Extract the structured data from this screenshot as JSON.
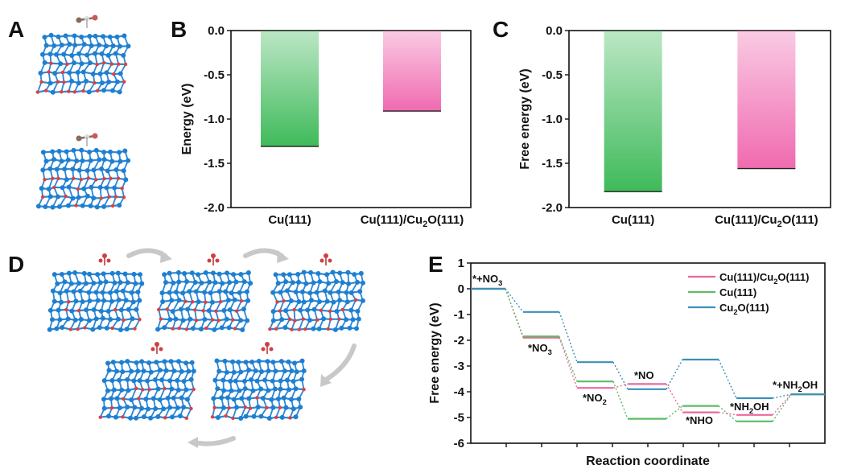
{
  "panels": {
    "A": "A",
    "B": "B",
    "C": "C",
    "D": "D",
    "E": "E"
  },
  "colors": {
    "green": "#3fba5a",
    "pink": "#f06ab0",
    "line_pink": "#e8699e",
    "line_green": "#5dbb63",
    "line_blue": "#3d8fb7",
    "atom_blue": "#1f7fcf",
    "atom_red": "#e04040"
  },
  "structures": {
    "icon_names": [
      "crystal-slab-icon",
      "adsorbate-molecule-icon",
      "cycle-arrow-icon"
    ]
  },
  "chart_data": [
    {
      "id": "B",
      "type": "bar",
      "categories": [
        "Cu(111)",
        "Cu(111)/Cu2O(111)"
      ],
      "values": [
        -1.31,
        -0.91
      ],
      "ylabel": "Energy (eV)",
      "xlabel": "",
      "ylim": [
        -2.0,
        0.0
      ],
      "yticks": [
        "0.0",
        "-0.5",
        "-1.0",
        "-1.5",
        "-2.0"
      ],
      "ytick_values": [
        0.0,
        -0.5,
        -1.0,
        -1.5,
        -2.0
      ],
      "bar_colors": [
        "#3fba5a",
        "#f06ab0"
      ]
    },
    {
      "id": "C",
      "type": "bar",
      "categories": [
        "Cu(111)",
        "Cu(111)/Cu2O(111)"
      ],
      "values": [
        -1.82,
        -1.56
      ],
      "ylabel": "Free energy (eV)",
      "xlabel": "",
      "ylim": [
        -2.0,
        0.0
      ],
      "yticks": [
        "0.0",
        "-0.5",
        "-1.0",
        "-1.5",
        "-2.0"
      ],
      "ytick_values": [
        0.0,
        -0.5,
        -1.0,
        -1.5,
        -2.0
      ],
      "bar_colors": [
        "#3fba5a",
        "#f06ab0"
      ]
    },
    {
      "id": "E",
      "type": "line",
      "xlabel": "Reaction coordinate",
      "ylabel": "Free energy (eV)",
      "ylim": [
        -6,
        1
      ],
      "yticks": [
        "1",
        "0",
        "-1",
        "-2",
        "-3",
        "-4",
        "-5",
        "-6"
      ],
      "ytick_values": [
        1,
        0,
        -1,
        -2,
        -3,
        -4,
        -5,
        -6
      ],
      "steps": [
        "*+NO3",
        "*NO3",
        "*NO2",
        "*NO",
        "*NHO",
        "*NH2OH",
        "*+NH2OH"
      ],
      "legend_position": "top-right",
      "series": [
        {
          "name": "Cu(111)/Cu2O(111)",
          "color": "#e8699e",
          "values": [
            0,
            -1.9,
            -3.85,
            -3.7,
            -4.8,
            -4.9,
            -4.1
          ]
        },
        {
          "name": "Cu(111)",
          "color": "#5dbb63",
          "values": [
            0,
            -1.85,
            -3.6,
            -5.05,
            -4.55,
            -5.15,
            -4.1
          ]
        },
        {
          "name": "Cu2O(111)",
          "color": "#3d8fb7",
          "values": [
            0,
            -0.9,
            -2.85,
            -3.9,
            -2.75,
            -4.25,
            -4.1
          ]
        }
      ]
    }
  ]
}
